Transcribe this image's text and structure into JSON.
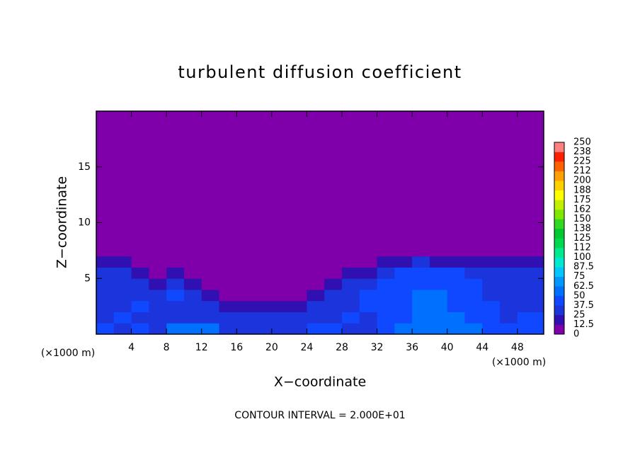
{
  "chart_data": {
    "type": "heatmap",
    "title": "turbulent diffusion coefficient",
    "xlabel": "X−coordinate",
    "ylabel": "Z−coordinate",
    "x_unit": "(×1000 m)",
    "footer": "CONTOUR INTERVAL = 2.000E+01",
    "xlim": [
      0,
      51
    ],
    "ylim": [
      0,
      20
    ],
    "xticks": [
      4,
      8,
      12,
      16,
      20,
      24,
      28,
      32,
      36,
      40,
      44,
      48
    ],
    "yticks": [
      5,
      10,
      15
    ],
    "x_edges": [
      0,
      2,
      4,
      6,
      8,
      10,
      12,
      14,
      16,
      18,
      20,
      22,
      24,
      26,
      28,
      30,
      32,
      34,
      36,
      38,
      40,
      42,
      44,
      46,
      48,
      50
    ],
    "z_edges": [
      0,
      1,
      2,
      3,
      4,
      5,
      6,
      7,
      8,
      20
    ],
    "values": [
      [
        38,
        35,
        40,
        36,
        55,
        58,
        52,
        30,
        32,
        28,
        35,
        30,
        38,
        40,
        33,
        36,
        45,
        55,
        62,
        58,
        55,
        50,
        42,
        38,
        40
      ],
      [
        35,
        38,
        33,
        30,
        36,
        32,
        30,
        34,
        36,
        33,
        35,
        32,
        30,
        35,
        38,
        36,
        40,
        48,
        52,
        60,
        50,
        45,
        40,
        36,
        38
      ],
      [
        36,
        34,
        38,
        35,
        34,
        30,
        35,
        20,
        22,
        18,
        20,
        22,
        34,
        32,
        35,
        38,
        42,
        45,
        50,
        55,
        48,
        42,
        38,
        35,
        36
      ],
      [
        34,
        36,
        35,
        35,
        38,
        33,
        20,
        5,
        5,
        5,
        5,
        5,
        20,
        36,
        35,
        38,
        40,
        44,
        50,
        52,
        45,
        40,
        36,
        34,
        35
      ],
      [
        36,
        33,
        35,
        20,
        34,
        20,
        5,
        5,
        5,
        5,
        5,
        5,
        5,
        20,
        34,
        36,
        38,
        42,
        48,
        45,
        40,
        38,
        35,
        36,
        34
      ],
      [
        33,
        35,
        20,
        5,
        20,
        5,
        5,
        5,
        5,
        5,
        5,
        5,
        5,
        5,
        20,
        22,
        36,
        40,
        44,
        42,
        38,
        35,
        34,
        33,
        35
      ],
      [
        20,
        22,
        5,
        5,
        5,
        5,
        5,
        5,
        5,
        5,
        5,
        5,
        5,
        5,
        5,
        5,
        22,
        20,
        25,
        22,
        20,
        18,
        22,
        20,
        22
      ],
      [
        5,
        5,
        5,
        5,
        5,
        5,
        5,
        5,
        5,
        5,
        5,
        5,
        5,
        5,
        5,
        5,
        5,
        5,
        8,
        5,
        5,
        5,
        5,
        5,
        5
      ],
      [
        0,
        0,
        0,
        0,
        0,
        0,
        0,
        0,
        0,
        0,
        0,
        0,
        0,
        0,
        0,
        0,
        0,
        0,
        0,
        0,
        0,
        0,
        0,
        0,
        0
      ]
    ],
    "levels": [
      0,
      12.5,
      25,
      37.5,
      50,
      62.5,
      75,
      87.5,
      100,
      112,
      125,
      138,
      150,
      162,
      175,
      188,
      200,
      212,
      225,
      238,
      250
    ],
    "colors": [
      "#7f00aa",
      "#3010b0",
      "#1c34dc",
      "#1048ff",
      "#0070ff",
      "#0098ff",
      "#00c8ff",
      "#00e8d0",
      "#00e890",
      "#00d850",
      "#00c830",
      "#30d820",
      "#80e800",
      "#c0f000",
      "#ffff00",
      "#ffd000",
      "#ffa000",
      "#ff6000",
      "#ff2000",
      "#ff8080"
    ]
  }
}
